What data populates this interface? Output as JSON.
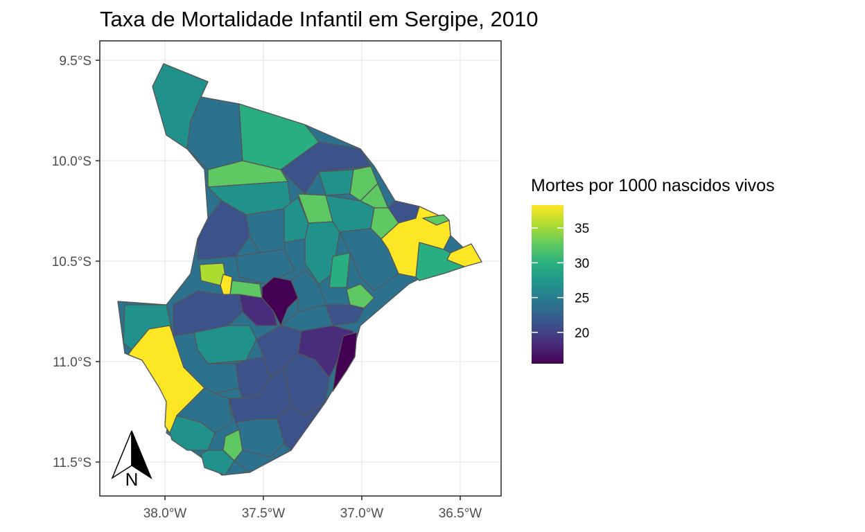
{
  "title": "Taxa de Mortalidade Infantil em Sergipe, 2010",
  "legend": {
    "title": "Mortes por 1000 nascidos vivos",
    "min": 15.5,
    "max": 38.3,
    "ticks": [
      {
        "value": 20,
        "label": "20"
      },
      {
        "value": 25,
        "label": "25"
      },
      {
        "value": 30,
        "label": "30"
      },
      {
        "value": 35,
        "label": "35"
      }
    ],
    "colormap": "viridis"
  },
  "axes": {
    "y_ticks": [
      {
        "value": -9.5,
        "label": "9.5°S"
      },
      {
        "value": -10.0,
        "label": "10.0°S"
      },
      {
        "value": -10.5,
        "label": "10.5°S"
      },
      {
        "value": -11.0,
        "label": "11.0°S"
      },
      {
        "value": -11.5,
        "label": "11.5°S"
      }
    ],
    "x_ticks": [
      {
        "value": -38.0,
        "label": "38.0°W"
      },
      {
        "value": -37.5,
        "label": "37.5°W"
      },
      {
        "value": -37.0,
        "label": "37.0°W"
      },
      {
        "value": -36.5,
        "label": "36.5°W"
      }
    ],
    "x_range": [
      -38.33,
      -36.28
    ],
    "y_range": [
      -11.66,
      -9.31
    ],
    "grid": true
  },
  "north_arrow": {
    "label": "N"
  },
  "colors": {
    "panel_border": "#333333",
    "grid": "#ebebeb",
    "outline": "#555555"
  }
}
